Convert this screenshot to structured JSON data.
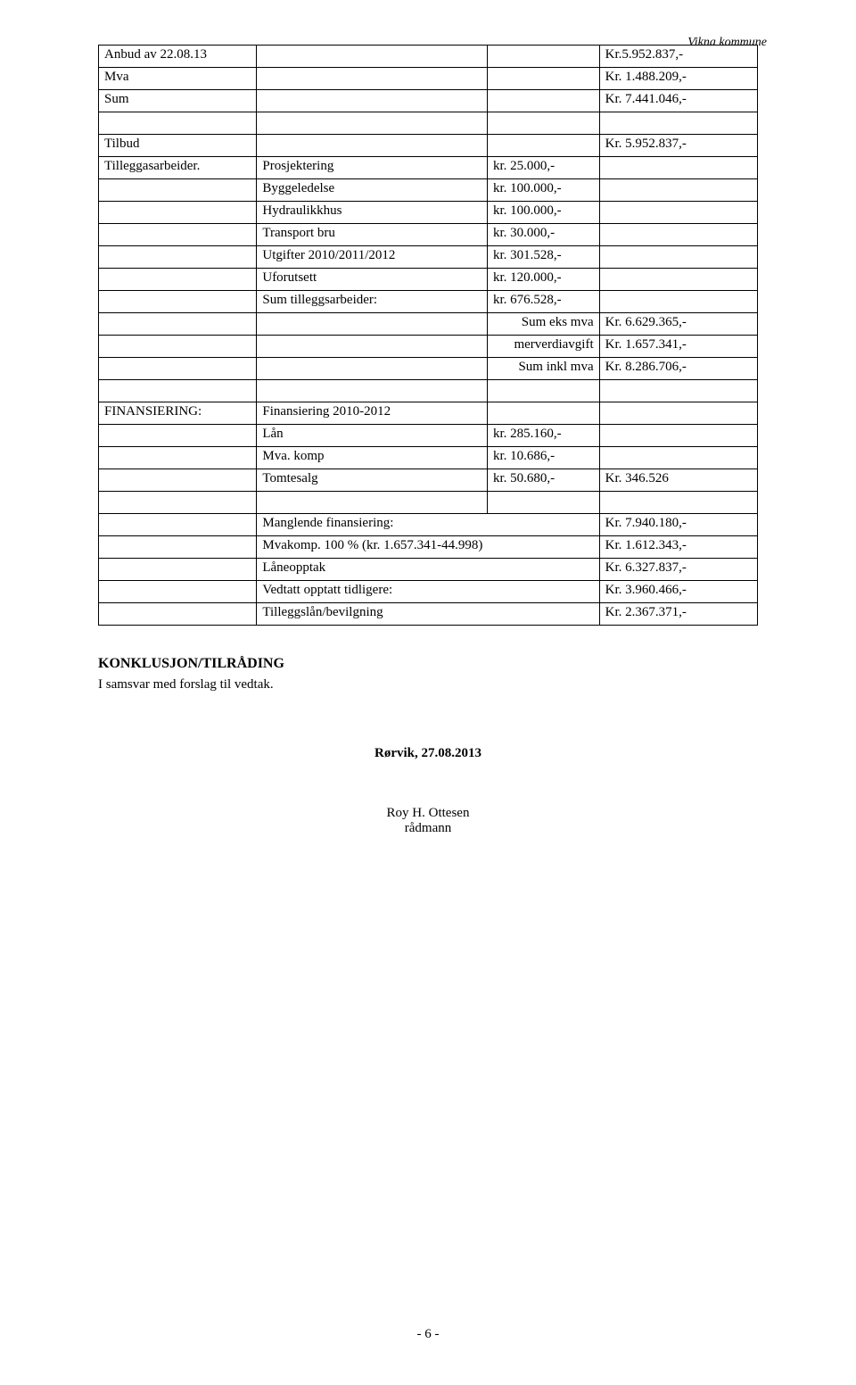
{
  "header": {
    "org": "Vikna kommune"
  },
  "table": {
    "rows": [
      {
        "a": "Anbud av 22.08.13",
        "b": "",
        "c": "",
        "d": "Kr.5.952.837,-"
      },
      {
        "a": "Mva",
        "b": "",
        "c": "",
        "d": "Kr. 1.488.209,-"
      },
      {
        "a": "Sum",
        "b": "",
        "c": "",
        "d": "Kr. 7.441.046,-"
      },
      {
        "a": "",
        "b": "",
        "c": "",
        "d": ""
      },
      {
        "a": "Tilbud",
        "b": "",
        "c": "",
        "d": "Kr. 5.952.837,-"
      },
      {
        "a": "Tilleggasarbeider.",
        "b": "Prosjektering",
        "c": "kr.   25.000,-",
        "d": ""
      },
      {
        "a": "",
        "b": "Byggeledelse",
        "c": "kr. 100.000,-",
        "d": ""
      },
      {
        "a": "",
        "b": "Hydraulikkhus",
        "c": "kr. 100.000,-",
        "d": ""
      },
      {
        "a": "",
        "b": "Transport bru",
        "c": "kr.   30.000,-",
        "d": ""
      },
      {
        "a": "",
        "b": "Utgifter 2010/2011/2012",
        "c": "kr. 301.528,-",
        "d": ""
      },
      {
        "a": "",
        "b": "Uforutsett",
        "c": "kr. 120.000,-",
        "d": ""
      },
      {
        "a": "",
        "b": "Sum tilleggsarbeider:",
        "c": "kr.    676.528,-",
        "d": ""
      },
      {
        "a": "",
        "b": "",
        "c": "Sum eks mva",
        "c_align": "right",
        "d": "Kr. 6.629.365,-"
      },
      {
        "a": "",
        "b": "",
        "c": "merverdiavgift",
        "c_align": "right",
        "d": "Kr. 1.657.341,-"
      },
      {
        "a": "",
        "b": "",
        "c": "Sum inkl mva",
        "c_align": "right",
        "d": "Kr. 8.286.706,-"
      },
      {
        "a": "",
        "b": "",
        "c": "",
        "d": ""
      },
      {
        "a": "FINANSIERING:",
        "b": "Finansiering 2010-2012",
        "c": "",
        "d": ""
      },
      {
        "a": "",
        "b": "Lån",
        "c": "kr. 285.160,-",
        "d": ""
      },
      {
        "a": "",
        "b": "Mva. komp",
        "c": "kr.   10.686,-",
        "d": ""
      },
      {
        "a": "",
        "b": "Tomtesalg",
        "c": "kr.   50.680,-",
        "d": "Kr. 346.526"
      },
      {
        "a": "",
        "b": "",
        "c": "",
        "d": ""
      },
      {
        "a": "",
        "b": "Manglende finansiering:",
        "c": "",
        "d": "Kr. 7.940.180,-"
      },
      {
        "a": "",
        "b": "Mvakomp. 100 % (kr. 1.657.341-44.998)",
        "c": "",
        "d": "Kr. 1.612.343,-"
      },
      {
        "a": "",
        "b": "Låneopptak",
        "c": "",
        "d": "Kr. 6.327.837,-"
      },
      {
        "a": "",
        "b": "Vedtatt opptatt tidligere:",
        "c": "",
        "d": "Kr. 3.960.466,-"
      },
      {
        "a": "",
        "b": "Tilleggslån/bevilgning",
        "c": "",
        "d": "Kr. 2.367.371,-"
      }
    ],
    "merge_bc": [
      22,
      23,
      24,
      25,
      26
    ]
  },
  "conclusion": {
    "heading": "KONKLUSJON/TILRÅDING",
    "text": "I samsvar med forslag til vedtak."
  },
  "footer_block": {
    "date": "Rørvik, 27.08.2013",
    "name": "Roy H. Ottesen",
    "title": "rådmann"
  },
  "page_number": "- 6 -"
}
